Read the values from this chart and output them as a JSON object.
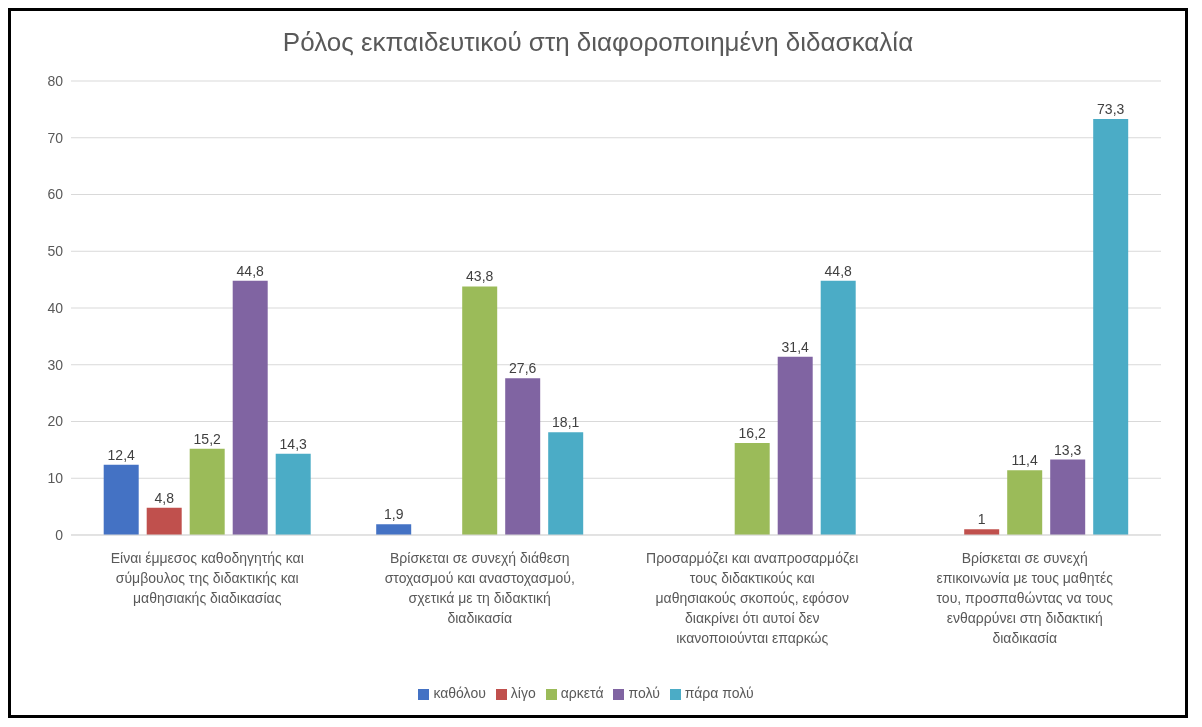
{
  "chart_data": {
    "type": "bar",
    "title": "Ρόλος εκπαιδευτικού στη διαφοροποιημένη διδασκαλία",
    "categories": [
      "Είναι έμμεσος καθοδηγητής και σύμβουλος της διδακτικής και μαθησιακής διαδικασίας",
      "Βρίσκεται σε συνεχή διάθεση στοχασμού και αναστοχασμού, σχετικά με τη διδακτική διαδικασία",
      "Προσαρμόζει και αναπροσαρμόζει τους διδακτικούς και μαθησιακούς σκοπούς, εφόσον διακρίνει ότι αυτοί δεν ικανοποιούνται επαρκώς",
      "Βρίσκεται σε συνεχή επικοινωνία με τους μαθητές του, προσπαθώντας να τους ενθαρρύνει στη διδακτική διαδικασία"
    ],
    "series": [
      {
        "name": "καθόλου",
        "color": "#4472c4",
        "values": [
          12.4,
          1.9,
          null,
          null
        ],
        "value_labels": [
          "12,4",
          "1,9",
          null,
          null
        ]
      },
      {
        "name": "λίγο",
        "color": "#c0504d",
        "values": [
          4.8,
          null,
          null,
          1
        ],
        "value_labels": [
          "4,8",
          null,
          null,
          "1"
        ]
      },
      {
        "name": "αρκετά",
        "color": "#9bbb59",
        "values": [
          15.2,
          43.8,
          16.2,
          11.4
        ],
        "value_labels": [
          "15,2",
          "43,8",
          "16,2",
          "11,4"
        ]
      },
      {
        "name": "πολύ",
        "color": "#8064a2",
        "values": [
          44.8,
          27.6,
          31.4,
          13.3
        ],
        "value_labels": [
          "44,8",
          "27,6",
          "31,4",
          "13,3"
        ]
      },
      {
        "name": "πάρα πολύ",
        "color": "#4bacc6",
        "values": [
          14.3,
          18.1,
          44.8,
          73.3
        ],
        "value_labels": [
          "14,3",
          "18,1",
          "44,8",
          "73,3"
        ]
      }
    ],
    "ylim": [
      0,
      80
    ],
    "yticks": [
      0,
      10,
      20,
      30,
      40,
      50,
      60,
      70,
      80
    ],
    "grid": "y",
    "legend": "bottom"
  }
}
